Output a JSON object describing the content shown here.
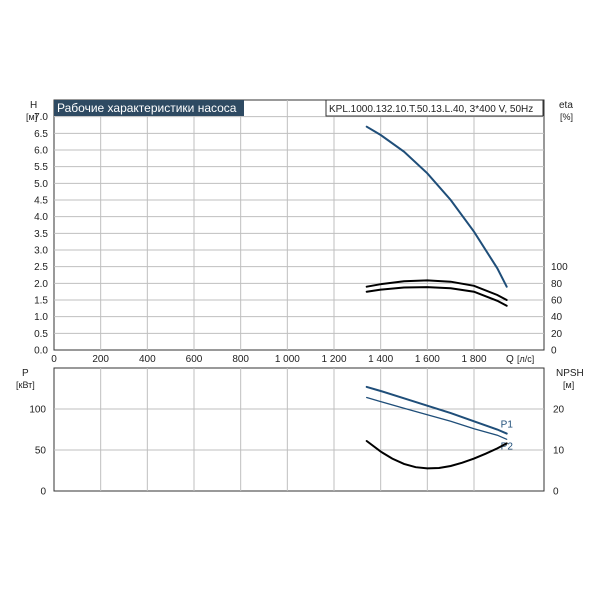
{
  "chart_data": [
    {
      "type": "line",
      "title": "Рабочие характеристики насоса",
      "subtitle": "KPL.1000.132.10.T.50.13.L.40, 3*400 V, 50Hz",
      "y_axis_left": {
        "label": "H",
        "unit": "[м]",
        "range": [
          0,
          7.5
        ],
        "ticks": [
          "0.0",
          "0.5",
          "1.0",
          "1.5",
          "2.0",
          "2.5",
          "3.0",
          "3.5",
          "4.0",
          "4.5",
          "5.0",
          "5.5",
          "6.0",
          "6.5",
          "7.0"
        ]
      },
      "y_axis_right": {
        "label": "eta",
        "unit": "[%]",
        "range": [
          0,
          100
        ],
        "ticks": [
          "0",
          "20",
          "40",
          "60",
          "80",
          "100"
        ]
      },
      "x_axis": {
        "label": "Q",
        "unit": "[л/с]",
        "range": [
          0,
          2100
        ],
        "ticks": [
          "0",
          "200",
          "400",
          "600",
          "800",
          "1 000",
          "1 200",
          "1 400",
          "1 600",
          "1 800"
        ]
      },
      "grid": true,
      "series": [
        {
          "axis": "left",
          "color": "#1f4e79",
          "x": [
            1340,
            1400,
            1500,
            1600,
            1700,
            1800,
            1900,
            1940
          ],
          "y": [
            6.7,
            6.45,
            5.95,
            5.3,
            4.5,
            3.55,
            2.45,
            1.9
          ]
        },
        {
          "axis": "right",
          "color": "#000000",
          "x": [
            1340,
            1400,
            1500,
            1600,
            1700,
            1800,
            1900,
            1940
          ],
          "y": [
            76,
            79,
            82.5,
            83.5,
            82,
            77,
            66,
            60
          ]
        },
        {
          "axis": "right",
          "color": "#000000",
          "x": [
            1340,
            1400,
            1500,
            1600,
            1700,
            1800,
            1900,
            1940
          ],
          "y": [
            70,
            72.5,
            75,
            75.5,
            74,
            70,
            59,
            53
          ]
        }
      ]
    },
    {
      "type": "line",
      "y_axis_left": {
        "label": "P",
        "unit": "[кВт]",
        "range": [
          0,
          150
        ],
        "ticks": [
          "0",
          "50",
          "100"
        ]
      },
      "y_axis_right": {
        "label": "NPSH",
        "unit": "[м]",
        "range": [
          0,
          30
        ],
        "ticks": [
          "0",
          "10",
          "20"
        ]
      },
      "x_axis": {
        "range": [
          0,
          2100
        ]
      },
      "grid": true,
      "series": [
        {
          "name": "P1",
          "axis": "left",
          "color": "#1f4e79",
          "x": [
            1340,
            1400,
            1500,
            1600,
            1700,
            1800,
            1900,
            1940
          ],
          "y": [
            127,
            122,
            113,
            104,
            95,
            85,
            75,
            70
          ]
        },
        {
          "name": "P2",
          "axis": "left",
          "color": "#1f4e79",
          "x": [
            1340,
            1400,
            1500,
            1600,
            1700,
            1800,
            1900,
            1940
          ],
          "y": [
            114,
            109,
            101,
            93,
            85,
            76,
            68,
            63
          ]
        },
        {
          "axis": "right",
          "color": "#000000",
          "x": [
            1340,
            1400,
            1450,
            1500,
            1550,
            1600,
            1650,
            1700,
            1750,
            1800,
            1850,
            1900,
            1940
          ],
          "y": [
            12.2,
            9.6,
            7.9,
            6.6,
            5.8,
            5.5,
            5.6,
            6.1,
            6.9,
            7.9,
            9.1,
            10.4,
            11.6
          ]
        }
      ]
    }
  ]
}
